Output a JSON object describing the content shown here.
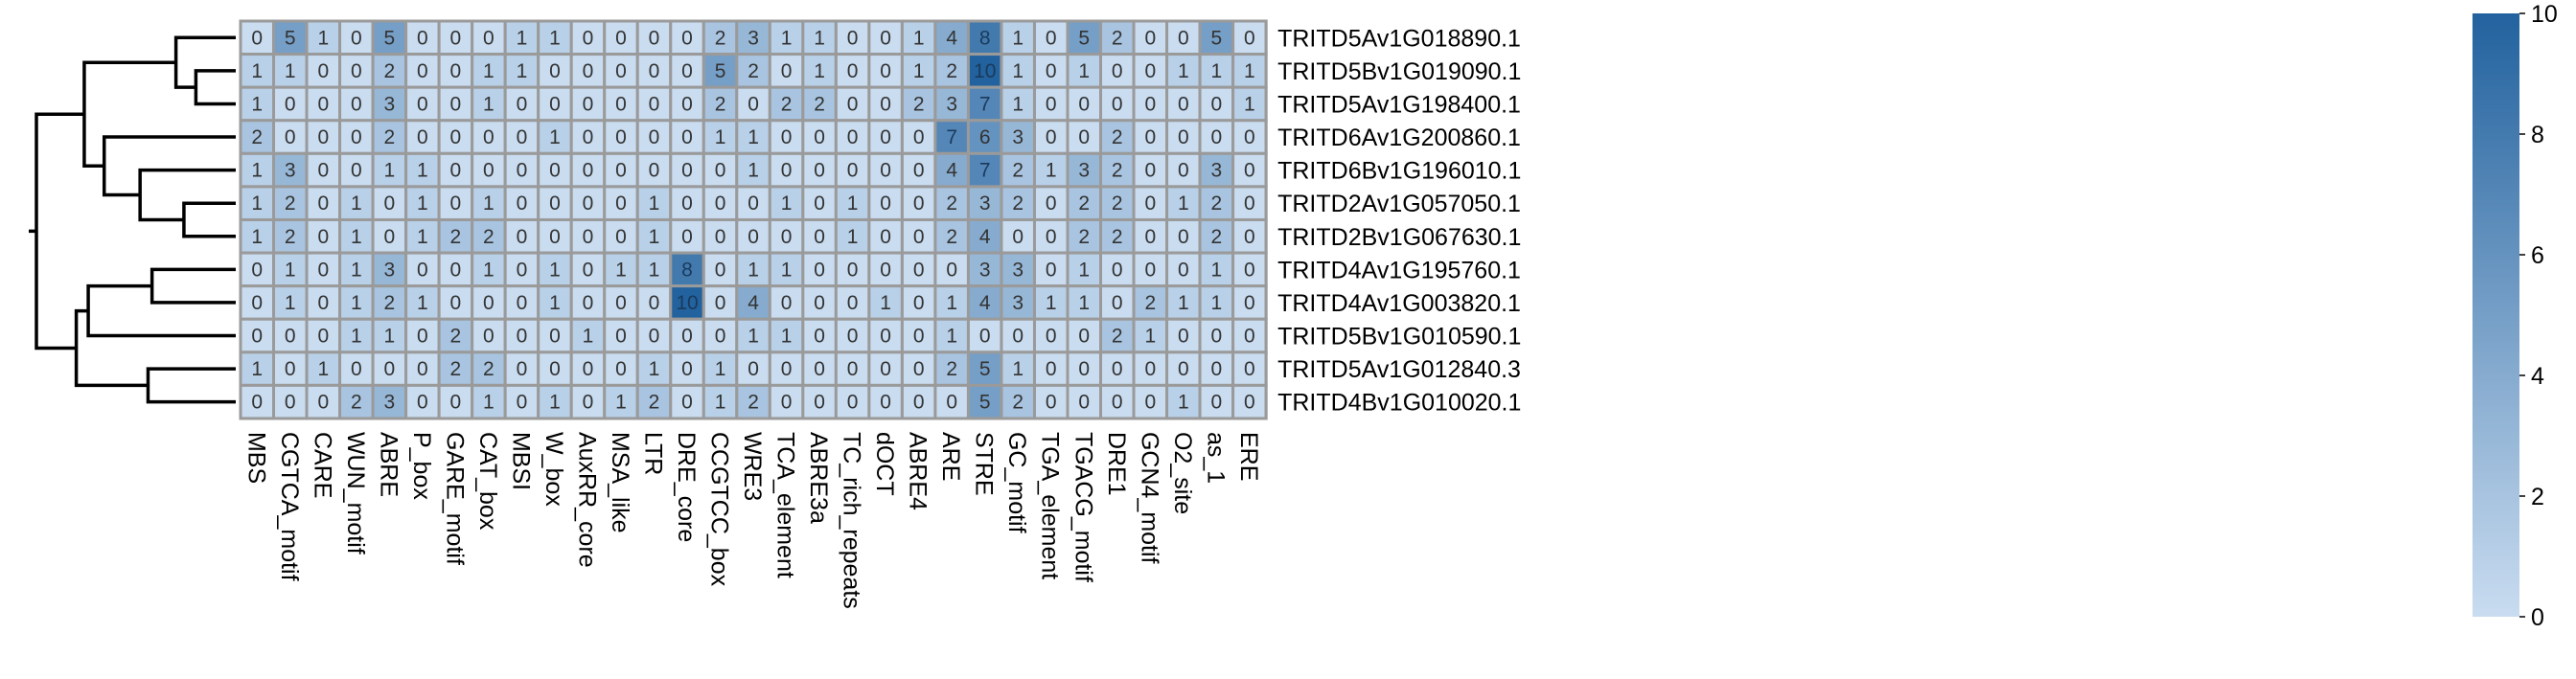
{
  "chart_data": {
    "type": "heatmap",
    "rows": [
      "TRITD5Av1G018890.1",
      "TRITD5Bv1G019090.1",
      "TRITD5Av1G198400.1",
      "TRITD6Av1G200860.1",
      "TRITD6Bv1G196010.1",
      "TRITD2Av1G057050.1",
      "TRITD2Bv1G067630.1",
      "TRITD4Av1G195760.1",
      "TRITD4Av1G003820.1",
      "TRITD5Bv1G010590.1",
      "TRITD5Av1G012840.3",
      "TRITD4Bv1G010020.1"
    ],
    "columns": [
      "MBS",
      "CGTCA_motif",
      "CARE",
      "WUN_motif",
      "ABRE",
      "P_box",
      "GARE_motif",
      "CAT_box",
      "MBSI",
      "W_box",
      "AuxRR_core",
      "MSA_like",
      "LTR",
      "DRE_core",
      "CCGTCC_box",
      "WRE3",
      "TCA_element",
      "ABRE3a",
      "TC_rich_repeats",
      "dOCT",
      "ABRE4",
      "ARE",
      "STRE",
      "GC_motif",
      "TGA_element",
      "TGACG_motif",
      "DRE1",
      "GCN4_motif",
      "O2_site",
      "as_1",
      "ERE"
    ],
    "values": [
      [
        0,
        5,
        1,
        0,
        5,
        0,
        0,
        0,
        1,
        1,
        0,
        0,
        0,
        0,
        2,
        3,
        1,
        1,
        0,
        0,
        1,
        4,
        8,
        1,
        0,
        5,
        2,
        0,
        0,
        5,
        0
      ],
      [
        1,
        1,
        0,
        0,
        2,
        0,
        0,
        1,
        1,
        0,
        0,
        0,
        0,
        0,
        5,
        2,
        0,
        1,
        0,
        0,
        1,
        2,
        10,
        1,
        0,
        1,
        0,
        0,
        1,
        1,
        1
      ],
      [
        1,
        0,
        0,
        0,
        3,
        0,
        0,
        1,
        0,
        0,
        0,
        0,
        0,
        0,
        2,
        0,
        2,
        2,
        0,
        0,
        2,
        3,
        7,
        1,
        0,
        0,
        0,
        0,
        0,
        0,
        1
      ],
      [
        2,
        0,
        0,
        0,
        2,
        0,
        0,
        0,
        0,
        1,
        0,
        0,
        0,
        0,
        1,
        1,
        0,
        0,
        0,
        0,
        0,
        7,
        6,
        3,
        0,
        0,
        2,
        0,
        0,
        0,
        0
      ],
      [
        1,
        3,
        0,
        0,
        1,
        1,
        0,
        0,
        0,
        0,
        0,
        0,
        0,
        0,
        0,
        1,
        0,
        0,
        0,
        0,
        0,
        4,
        7,
        2,
        1,
        3,
        2,
        0,
        0,
        3,
        0
      ],
      [
        1,
        2,
        0,
        1,
        0,
        1,
        0,
        1,
        0,
        0,
        0,
        0,
        1,
        0,
        0,
        0,
        1,
        0,
        1,
        0,
        0,
        2,
        3,
        2,
        0,
        2,
        2,
        0,
        1,
        2,
        0
      ],
      [
        1,
        2,
        0,
        1,
        0,
        1,
        2,
        2,
        0,
        0,
        0,
        0,
        1,
        0,
        0,
        0,
        0,
        0,
        1,
        0,
        0,
        2,
        4,
        0,
        0,
        2,
        2,
        0,
        0,
        2,
        0
      ],
      [
        0,
        1,
        0,
        1,
        3,
        0,
        0,
        1,
        0,
        1,
        0,
        1,
        1,
        8,
        0,
        1,
        1,
        0,
        0,
        0,
        0,
        0,
        3,
        3,
        0,
        1,
        0,
        0,
        0,
        1,
        0
      ],
      [
        0,
        1,
        0,
        1,
        2,
        1,
        0,
        0,
        0,
        1,
        0,
        0,
        0,
        10,
        0,
        4,
        0,
        0,
        0,
        1,
        0,
        1,
        4,
        3,
        1,
        1,
        0,
        2,
        1,
        1,
        0
      ],
      [
        0,
        0,
        0,
        1,
        1,
        0,
        2,
        0,
        0,
        0,
        1,
        0,
        0,
        0,
        0,
        1,
        1,
        0,
        0,
        0,
        0,
        1,
        0,
        0,
        0,
        0,
        2,
        1,
        0,
        0,
        0
      ],
      [
        1,
        0,
        1,
        0,
        0,
        0,
        2,
        2,
        0,
        0,
        0,
        0,
        1,
        0,
        1,
        0,
        0,
        0,
        0,
        0,
        0,
        2,
        5,
        1,
        0,
        0,
        0,
        0,
        0,
        0,
        0
      ],
      [
        0,
        0,
        0,
        2,
        3,
        0,
        0,
        1,
        0,
        1,
        0,
        1,
        2,
        0,
        1,
        2,
        0,
        0,
        0,
        0,
        0,
        0,
        5,
        2,
        0,
        0,
        0,
        0,
        1,
        0,
        0
      ]
    ],
    "colorbar": {
      "ticks": [
        0,
        2,
        4,
        6,
        8,
        10
      ],
      "range": [
        0,
        10
      ],
      "color_low": "#c9dcf0",
      "color_high": "#22629e"
    },
    "dendrogram": "rows",
    "grid_color": "#9a9a9a"
  }
}
